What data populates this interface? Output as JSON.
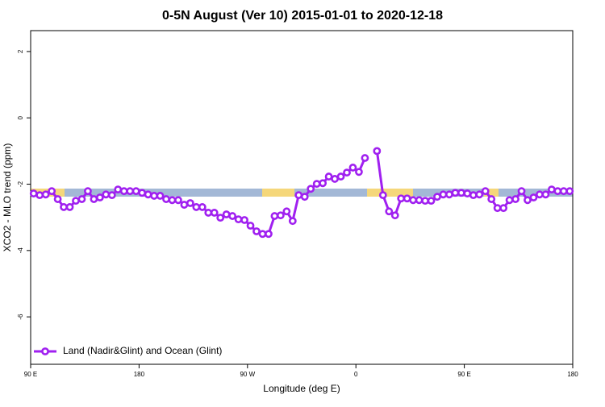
{
  "chart_data": {
    "type": "line",
    "title": "0-5N August (Ver 10)   2015-01-01 to 2020-12-18",
    "x_label": "Longitude (deg E)",
    "y_label": "XCO2 - MLO trend (ppm)",
    "x": [
      92.5,
      97.5,
      102.5,
      107.5,
      112.5,
      117.5,
      122.5,
      127.5,
      132.5,
      137.5,
      142.5,
      147.5,
      152.5,
      157.5,
      162.5,
      167.5,
      172.5,
      177.5,
      182.5,
      187.5,
      192.5,
      197.5,
      202.5,
      207.5,
      212.5,
      217.5,
      222.5,
      227.5,
      232.5,
      237.5,
      242.5,
      247.5,
      252.5,
      257.5,
      262.5,
      267.5,
      272.5,
      277.5,
      282.5,
      287.5,
      292.5,
      297.5,
      302.5,
      307.5,
      312.5,
      317.5,
      322.5,
      327.5,
      332.5,
      337.5,
      342.5,
      347.5,
      352.5,
      357.5,
      362.5,
      367.5,
      372.5,
      377.5,
      382.5,
      387.5,
      392.5,
      397.5,
      402.5,
      407.5,
      412.5,
      417.5,
      422.5,
      427.5,
      432.5,
      437.5,
      442.5,
      447.5,
      452.5,
      457.5,
      462.5,
      467.5,
      472.5,
      477.5,
      482.5,
      487.5,
      492.5,
      497.5,
      502.5,
      507.5,
      512.5,
      517.5,
      522.5,
      527.5,
      532.5,
      537.5
    ],
    "series": [
      {
        "name": "Land (Nadir&Glint) and Ocean (Glint)",
        "color": "#a020f0",
        "values": [
          -2.28,
          -2.33,
          -2.31,
          -2.21,
          -2.45,
          -2.69,
          -2.69,
          -2.5,
          -2.45,
          -2.21,
          -2.45,
          -2.4,
          -2.31,
          -2.33,
          -2.16,
          -2.21,
          -2.21,
          -2.21,
          -2.26,
          -2.31,
          -2.35,
          -2.35,
          -2.45,
          -2.48,
          -2.48,
          -2.62,
          -2.57,
          -2.69,
          -2.69,
          -2.86,
          -2.86,
          -3.01,
          -2.91,
          -2.96,
          -3.06,
          -3.08,
          -3.25,
          -3.42,
          -3.5,
          -3.5,
          -2.96,
          -2.94,
          -2.82,
          -3.11,
          -2.33,
          -2.38,
          -2.14,
          -1.99,
          -1.97,
          -1.77,
          -1.84,
          -1.77,
          -1.65,
          -1.5,
          -1.63,
          -1.21,
          null,
          -1.0,
          -2.33,
          -2.82,
          -2.94,
          -2.43,
          -2.43,
          -2.48,
          -2.48,
          -2.5,
          -2.5,
          -2.38,
          -2.31,
          -2.31,
          -2.26,
          -2.26,
          -2.28,
          -2.33,
          -2.31,
          -2.21,
          -2.45,
          -2.72,
          -2.72,
          -2.48,
          -2.45,
          -2.21,
          -2.48,
          -2.4,
          -2.31,
          -2.31,
          -2.16,
          -2.21,
          -2.21,
          -2.21
        ]
      }
    ],
    "xlim": [
      90,
      540
    ],
    "xticks": [
      {
        "value": 90,
        "label": "90 E"
      },
      180,
      {
        "value": 270,
        "label": "90 W"
      },
      {
        "value": 360,
        "label": "0"
      },
      {
        "value": 450,
        "label": "90 E"
      },
      {
        "value": 540,
        "label": "180"
      }
    ],
    "ylim": [
      -7.43,
      2.63
    ],
    "yticks": [
      -6,
      -4,
      -2,
      0,
      2
    ],
    "legend": "bottom-left"
  }
}
